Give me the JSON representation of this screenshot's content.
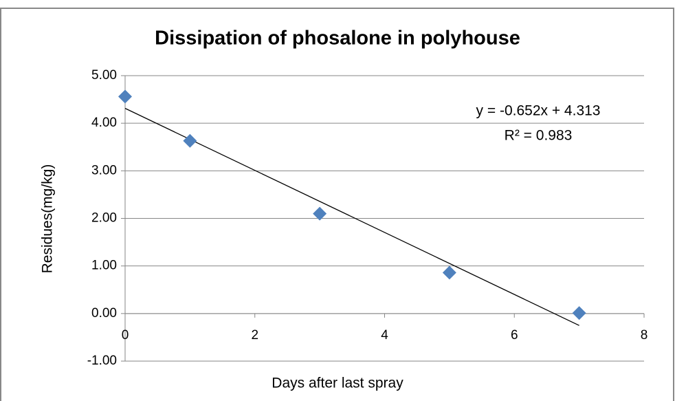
{
  "chart_data": {
    "type": "scatter",
    "title": "Dissipation of phosalone in polyhouse",
    "x_label": "Days after last spray",
    "y_label": "Residues(mg/kg)",
    "series": [
      {
        "name": "Residues",
        "color": "#4f81bd",
        "x": [
          0,
          1,
          3,
          5,
          7
        ],
        "values": [
          4.56,
          3.63,
          2.1,
          0.86,
          0.01
        ]
      }
    ],
    "trendline": {
      "slope": -0.652,
      "intercept": 4.313,
      "label": "y = -0.652x + 4.313",
      "r2_label": "R² = 0.983",
      "color": "#000000"
    },
    "xlim": [
      0,
      8
    ],
    "xticks": [
      0,
      2,
      4,
      6,
      8
    ],
    "ylim": [
      -1,
      5
    ],
    "yticks": [
      {
        "value": -1,
        "label": "-1.00"
      },
      {
        "value": 0,
        "label": "0.00"
      },
      {
        "value": 1,
        "label": "1.00"
      },
      {
        "value": 2,
        "label": "2.00"
      },
      {
        "value": 3,
        "label": "3.00"
      },
      {
        "value": 4,
        "label": "4.00"
      },
      {
        "value": 5,
        "label": "5.00"
      }
    ],
    "grid": true
  }
}
